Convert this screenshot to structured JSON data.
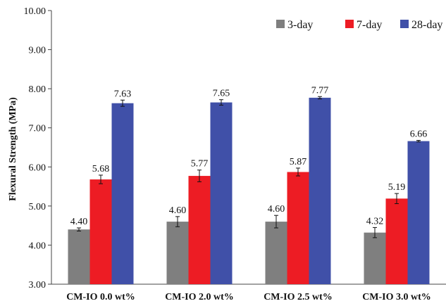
{
  "chart_data": {
    "type": "bar",
    "title": "",
    "xlabel": "",
    "ylabel": "Flexural Strength (MPa)",
    "ylim": [
      3.0,
      10.0
    ],
    "yticks": [
      3.0,
      4.0,
      5.0,
      6.0,
      7.0,
      8.0,
      9.0,
      10.0
    ],
    "ytick_labels": [
      "3.00",
      "4.00",
      "5.00",
      "6.00",
      "7.00",
      "8.00",
      "9.00",
      "10.00"
    ],
    "grid": false,
    "legend_position": "top-right",
    "categories": [
      "CM-IO 0.0 wt%",
      "CM-IO 2.0 wt%",
      "CM-IO 2.5 wt%",
      "CM-IO 3.0 wt%"
    ],
    "series": [
      {
        "name": "3-day",
        "color": "#7f7f7f",
        "values": [
          4.4,
          4.6,
          4.6,
          4.32
        ],
        "labels": [
          "4.40",
          "4.60",
          "4.60",
          "4.32"
        ],
        "errors": [
          0.04,
          0.13,
          0.16,
          0.13
        ]
      },
      {
        "name": "7-day",
        "color": "#ed1c24",
        "values": [
          5.68,
          5.77,
          5.87,
          5.19
        ],
        "labels": [
          "5.68",
          "5.77",
          "5.87",
          "5.19"
        ],
        "errors": [
          0.11,
          0.15,
          0.1,
          0.13
        ]
      },
      {
        "name": "28-day",
        "color": "#4050a8",
        "values": [
          7.63,
          7.65,
          7.77,
          6.66
        ],
        "labels": [
          "7.63",
          "7.65",
          "7.77",
          "6.66"
        ],
        "errors": [
          0.08,
          0.07,
          0.03,
          0.02
        ]
      }
    ]
  }
}
